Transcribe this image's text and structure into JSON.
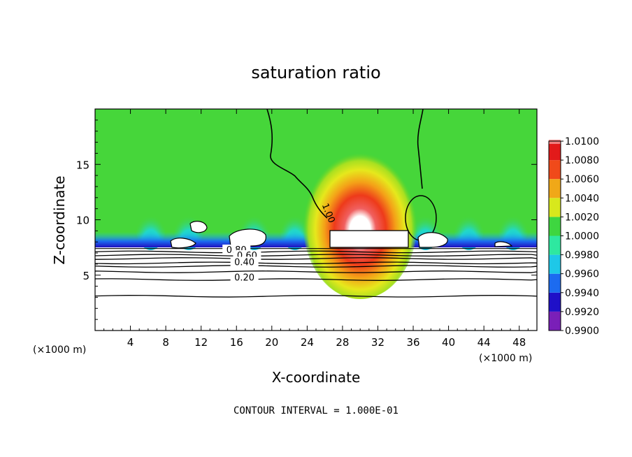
{
  "chart_data": {
    "type": "heatmap",
    "title": "saturation ratio",
    "xlabel": "X-coordinate",
    "ylabel": "Z-coordinate",
    "x_unit_label": "(×1000 m)",
    "y_unit_label": "(×1000 m)",
    "xlim": [
      0,
      50
    ],
    "ylim": [
      0,
      20
    ],
    "x_ticks": [
      4,
      8,
      12,
      16,
      20,
      24,
      28,
      32,
      36,
      40,
      44,
      48
    ],
    "y_ticks": [
      5,
      10,
      15
    ],
    "colorbar": {
      "levels": [
        "0.9900",
        "0.9920",
        "0.9940",
        "0.9960",
        "0.9980",
        "1.0000",
        "1.0020",
        "1.0040",
        "1.0060",
        "1.0080",
        "1.0100"
      ],
      "colors": [
        "#7a1fb8",
        "#1f10c8",
        "#1c6bf0",
        "#1ec8e8",
        "#2ee8a0",
        "#3ed640",
        "#d8e81c",
        "#f0a818",
        "#f04a1a",
        "#e21a1a",
        "#f08080"
      ]
    },
    "contour_labels": [
      {
        "text": "1.00",
        "x": 26.1,
        "z": 10.5
      },
      {
        "text": "0.80",
        "x": 16.0,
        "z": 7.0
      },
      {
        "text": "0.60",
        "x": 17.2,
        "z": 6.5
      },
      {
        "text": "0.40",
        "x": 16.9,
        "z": 5.9
      },
      {
        "text": "0.20",
        "x": 16.9,
        "z": 4.5
      }
    ],
    "contour_lines_z": [
      3.1,
      4.6,
      5.3,
      5.8,
      6.1,
      6.5,
      6.8,
      7.1
    ],
    "cloud_edge_z": 7.4,
    "note": "CONTOUR INTERVAL = 1.000E-01"
  }
}
